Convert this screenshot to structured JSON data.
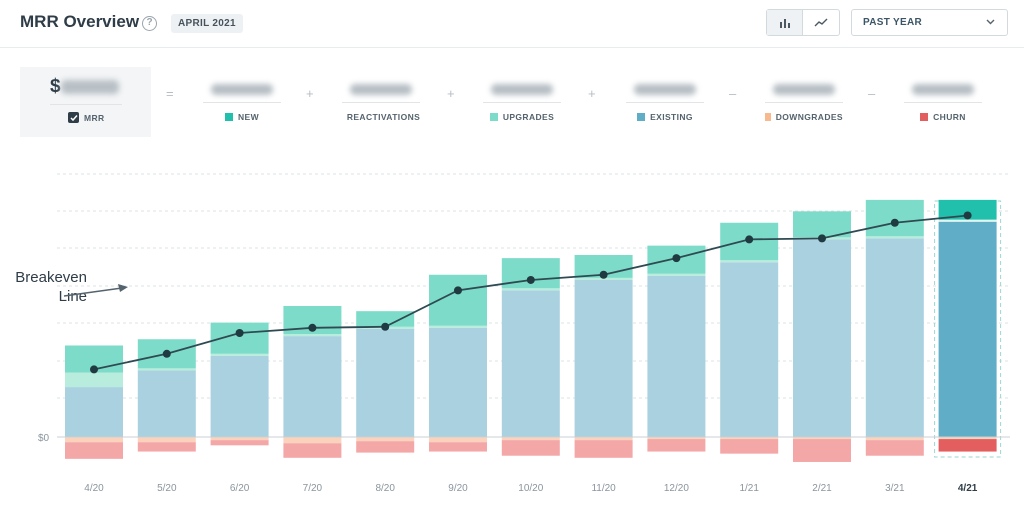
{
  "header": {
    "title": "MRR Overview",
    "help_glyph": "?",
    "month": "APRIL 2021",
    "views": [
      {
        "name": "bar-chart-icon",
        "active": true
      },
      {
        "name": "line-chart-icon",
        "active": false
      }
    ],
    "range_value": "PAST YEAR"
  },
  "equation": {
    "mrr": {
      "prefix": "$",
      "label": "MRR",
      "checked": true
    },
    "components": [
      {
        "op": "=",
        "label": "NEW",
        "color": "#21c0ad"
      },
      {
        "op": "+",
        "label": "REACTIVATIONS",
        "color": "#14b8a0"
      },
      {
        "op": "+",
        "label": "UPGRADES",
        "color": "#7ddcc9"
      },
      {
        "op": "+",
        "label": "EXISTING",
        "color": "#5fadc7"
      },
      {
        "op": "–",
        "label": "DOWNGRADES",
        "color": "#f7b98d"
      },
      {
        "op": "–",
        "label": "CHURN",
        "color": "#e35f5f"
      }
    ]
  },
  "annotation": {
    "line1": "Breakeven",
    "line2": "Line"
  },
  "chart_data": {
    "type": "bar",
    "stacked": true,
    "categories": [
      "4/20",
      "5/20",
      "6/20",
      "7/20",
      "8/20",
      "9/20",
      "10/20",
      "11/20",
      "12/20",
      "1/21",
      "2/21",
      "3/21",
      "4/21"
    ],
    "highlight_category": "4/21",
    "y_tick_labels": [
      "$0"
    ],
    "grid": true,
    "series": [
      {
        "name": "EXISTING",
        "values": [
          48,
          64,
          78,
          97,
          104,
          105,
          141,
          151,
          155,
          168,
          190,
          191,
          207
        ],
        "color": "#a9d1df"
      },
      {
        "name": "UPGRADES",
        "values": [
          14,
          2,
          2,
          2,
          2,
          2,
          2,
          2,
          2,
          2,
          2,
          2,
          2
        ],
        "color": "#b8ecdd"
      },
      {
        "name": "NEW",
        "values": [
          26,
          28,
          30,
          27,
          15,
          49,
          29,
          22,
          27,
          36,
          25,
          35,
          19
        ],
        "color": "#7ddcc9"
      },
      {
        "name": "DOWNGRADES",
        "values": [
          -5,
          -5,
          -3,
          -6,
          -4,
          -5,
          -3,
          -3,
          -2,
          -2,
          -2,
          -3,
          -2
        ],
        "color": "#fbd3bd"
      },
      {
        "name": "CHURN",
        "values": [
          -16,
          -9,
          -5,
          -14,
          -11,
          -9,
          -15,
          -17,
          -12,
          -14,
          -22,
          -15,
          -12
        ],
        "color": "#f4a7a7"
      }
    ],
    "line": {
      "name": "Breakeven Line",
      "values": [
        65,
        80,
        100,
        105,
        106,
        141,
        151,
        156,
        172,
        190,
        191,
        206,
        213
      ],
      "color": "#2f4a52"
    },
    "ylim": [
      -30,
      260
    ]
  }
}
